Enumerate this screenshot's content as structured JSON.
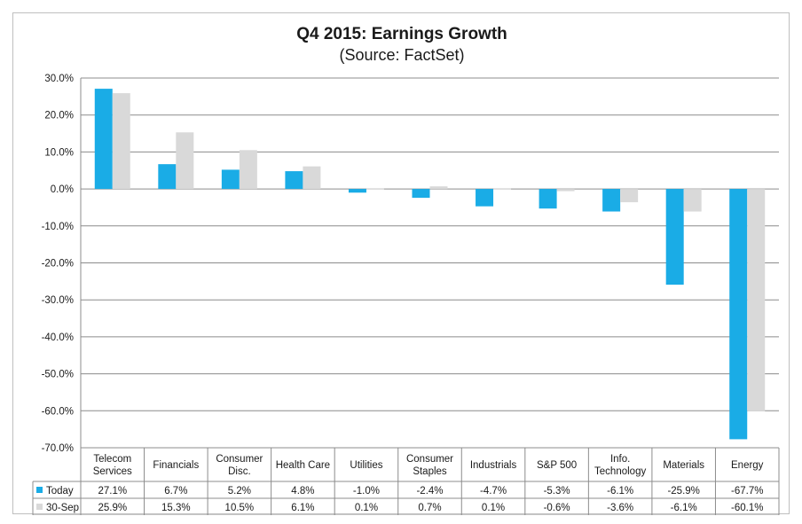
{
  "chart_data": {
    "type": "bar",
    "title": "Q4 2015: Earnings Growth",
    "subtitle": "(Source: FactSet)",
    "xlabel": "",
    "ylabel": "",
    "ylim": [
      -70,
      30
    ],
    "yticks": [
      30,
      20,
      10,
      0,
      -10,
      -20,
      -30,
      -40,
      -50,
      -60,
      -70
    ],
    "ytick_labels": [
      "30.0%",
      "20.0%",
      "10.0%",
      "0.0%",
      "-10.0%",
      "-20.0%",
      "-30.0%",
      "-40.0%",
      "-50.0%",
      "-60.0%",
      "-70.0%"
    ],
    "grid": true,
    "categories": [
      [
        "Telecom",
        "Services"
      ],
      [
        "Financials"
      ],
      [
        "Consumer",
        "Disc."
      ],
      [
        "Health Care"
      ],
      [
        "Utilities"
      ],
      [
        "Consumer",
        "Staples"
      ],
      [
        "Industrials"
      ],
      [
        "S&P 500"
      ],
      [
        "Info.",
        "Technology"
      ],
      [
        "Materials"
      ],
      [
        "Energy"
      ]
    ],
    "series": [
      {
        "name": "Today",
        "color": "#1aace6",
        "values": [
          27.1,
          6.7,
          5.2,
          4.8,
          -1.0,
          -2.4,
          -4.7,
          -5.3,
          -6.1,
          -25.9,
          -67.7
        ],
        "labels": [
          "27.1%",
          "6.7%",
          "5.2%",
          "4.8%",
          "-1.0%",
          "-2.4%",
          "-4.7%",
          "-5.3%",
          "-6.1%",
          "-25.9%",
          "-67.7%"
        ]
      },
      {
        "name": "30-Sep",
        "color": "#d9d9d9",
        "values": [
          25.9,
          15.3,
          10.5,
          6.1,
          0.1,
          0.7,
          0.1,
          -0.6,
          -3.6,
          -6.1,
          -60.1
        ],
        "labels": [
          "25.9%",
          "15.3%",
          "10.5%",
          "6.1%",
          "0.1%",
          "0.7%",
          "0.1%",
          "-0.6%",
          "-3.6%",
          "-6.1%",
          "-60.1%"
        ]
      }
    ]
  }
}
